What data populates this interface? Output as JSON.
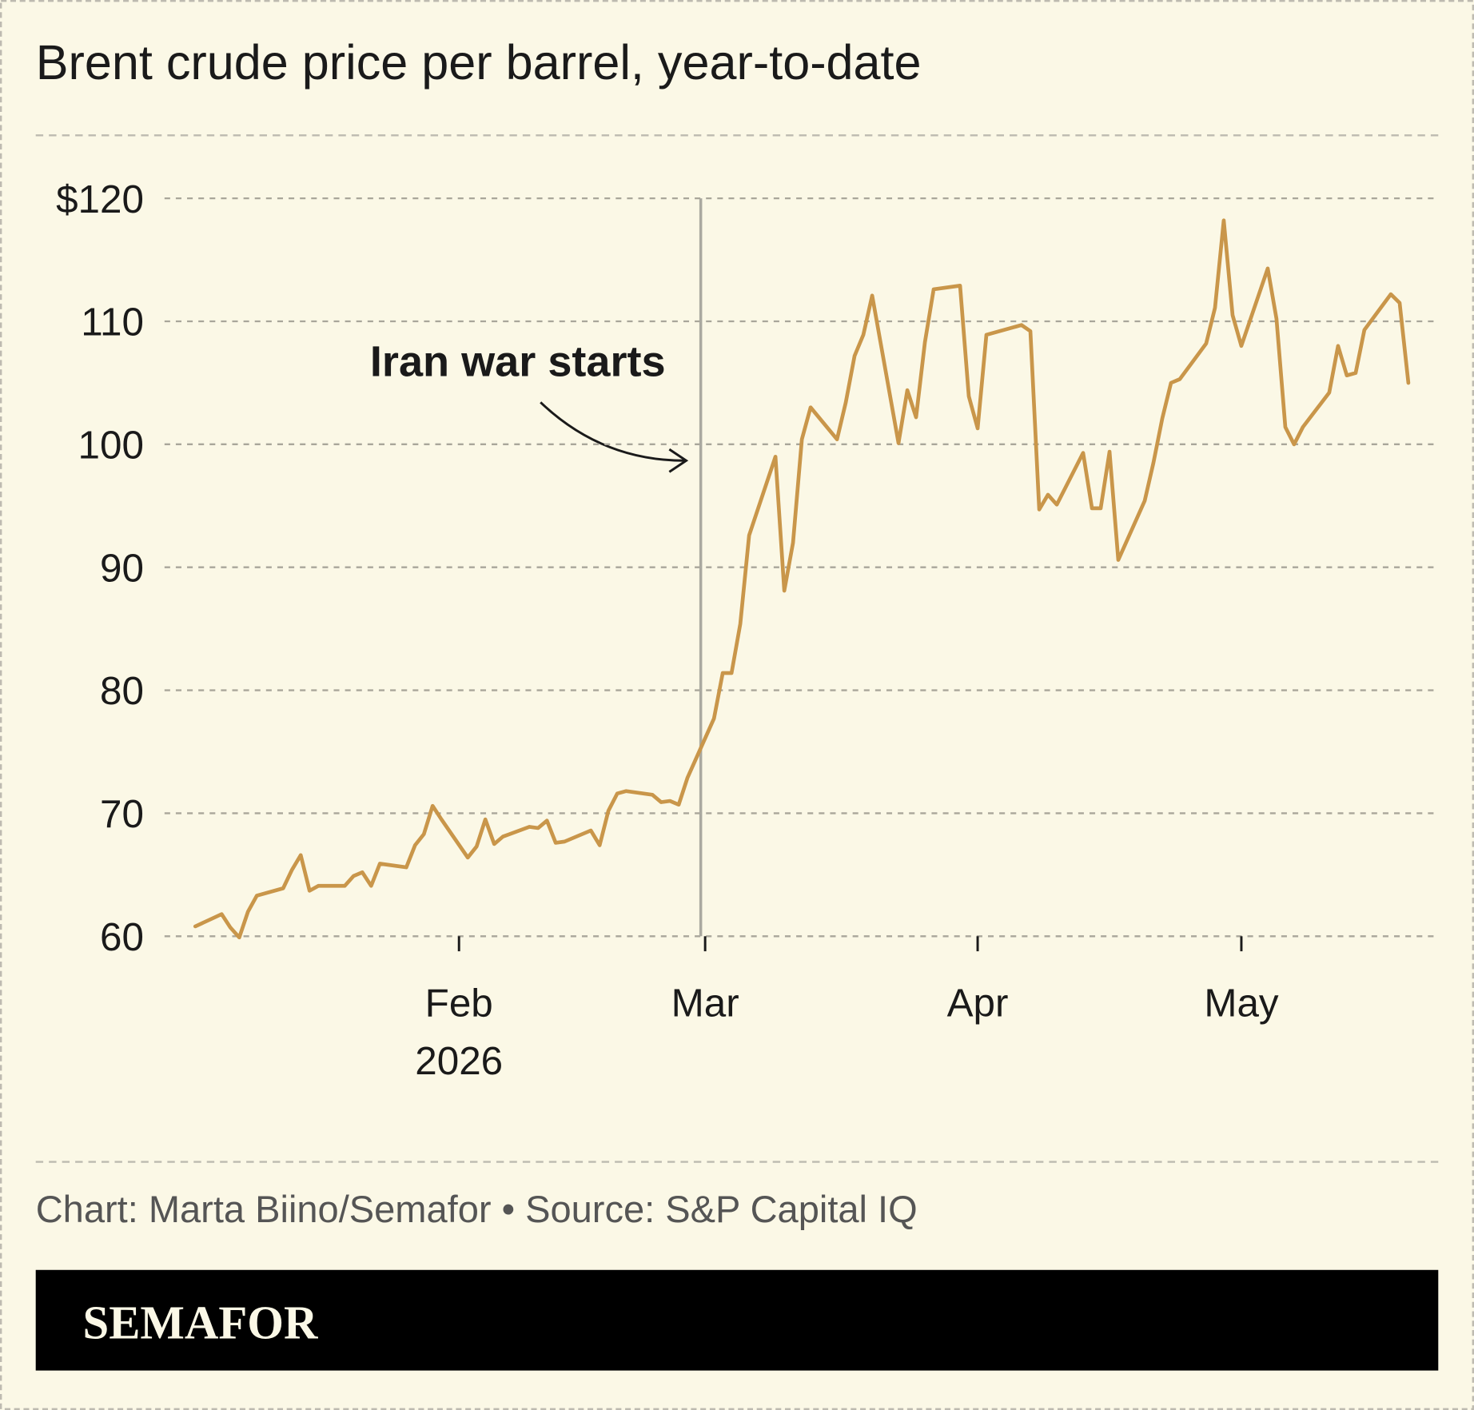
{
  "chart_data": {
    "type": "line",
    "title": "Brent crude price per barrel, year-to-date",
    "color": "#c9964a",
    "x": [
      2,
      5,
      6,
      7,
      8,
      9,
      12,
      13,
      14,
      15,
      16,
      19,
      20,
      21,
      22,
      23,
      26,
      27,
      28,
      29,
      30,
      33,
      34,
      35,
      36,
      37,
      40,
      41,
      42,
      43,
      44,
      47,
      48,
      49,
      50,
      51,
      54,
      55,
      56,
      57,
      58,
      61,
      62,
      63,
      64,
      65,
      68,
      69,
      70,
      71,
      72,
      75,
      76,
      77,
      78,
      79,
      82,
      83,
      84,
      85,
      86,
      89,
      90,
      91,
      92,
      96,
      97,
      98,
      99,
      100,
      103,
      104,
      105,
      106,
      107,
      110,
      111,
      112,
      113,
      114,
      117,
      118,
      119,
      120,
      121,
      124,
      125,
      126,
      127,
      128,
      131,
      132,
      133,
      134,
      135,
      138,
      139,
      140
    ],
    "values": [
      60.8,
      61.8,
      60.7,
      59.9,
      62.0,
      63.3,
      63.9,
      65.4,
      66.6,
      63.7,
      64.1,
      64.1,
      64.9,
      65.2,
      64.1,
      65.9,
      65.6,
      67.4,
      68.3,
      70.6,
      69.5,
      66.4,
      67.3,
      69.5,
      67.5,
      68.1,
      68.9,
      68.8,
      69.4,
      67.6,
      67.7,
      68.6,
      67.4,
      70.2,
      71.6,
      71.8,
      71.5,
      70.9,
      71.0,
      70.7,
      72.9,
      77.7,
      81.4,
      81.4,
      85.4,
      92.6,
      99.0,
      88.1,
      92.0,
      100.4,
      103.0,
      100.4,
      103.4,
      107.2,
      108.9,
      112.1,
      100.1,
      104.4,
      102.2,
      108.3,
      112.6,
      112.9,
      103.9,
      101.3,
      108.9,
      109.7,
      109.2,
      94.7,
      95.9,
      95.1,
      99.3,
      94.8,
      94.8,
      99.4,
      90.6,
      95.4,
      98.5,
      102.1,
      105.0,
      105.3,
      108.2,
      111.1,
      118.2,
      110.5,
      108.0,
      114.3,
      110.2,
      101.4,
      100.0,
      101.4,
      104.2,
      108.0,
      105.6,
      105.8,
      109.3,
      112.2,
      111.5,
      105.0
    ],
    "xlim": [
      -1.5,
      143.4
    ],
    "xticks": [
      {
        "value": 32,
        "label": "Feb"
      },
      {
        "value": 60,
        "label": "Mar"
      },
      {
        "value": 91,
        "label": "Apr"
      },
      {
        "value": 121,
        "label": "May"
      }
    ],
    "x_sublabel": "2026",
    "ylim": [
      60,
      120
    ],
    "yticks": [
      60,
      70,
      80,
      90,
      100,
      110,
      {
        "value": 120,
        "label": "$120"
      }
    ],
    "grid": true,
    "annotation": {
      "text": "Iran war starts",
      "x": 59.5
    },
    "source": "Chart: Marta Biino/Semafor • Source: S&P Capital IQ"
  },
  "brand": "SEMAFOR"
}
